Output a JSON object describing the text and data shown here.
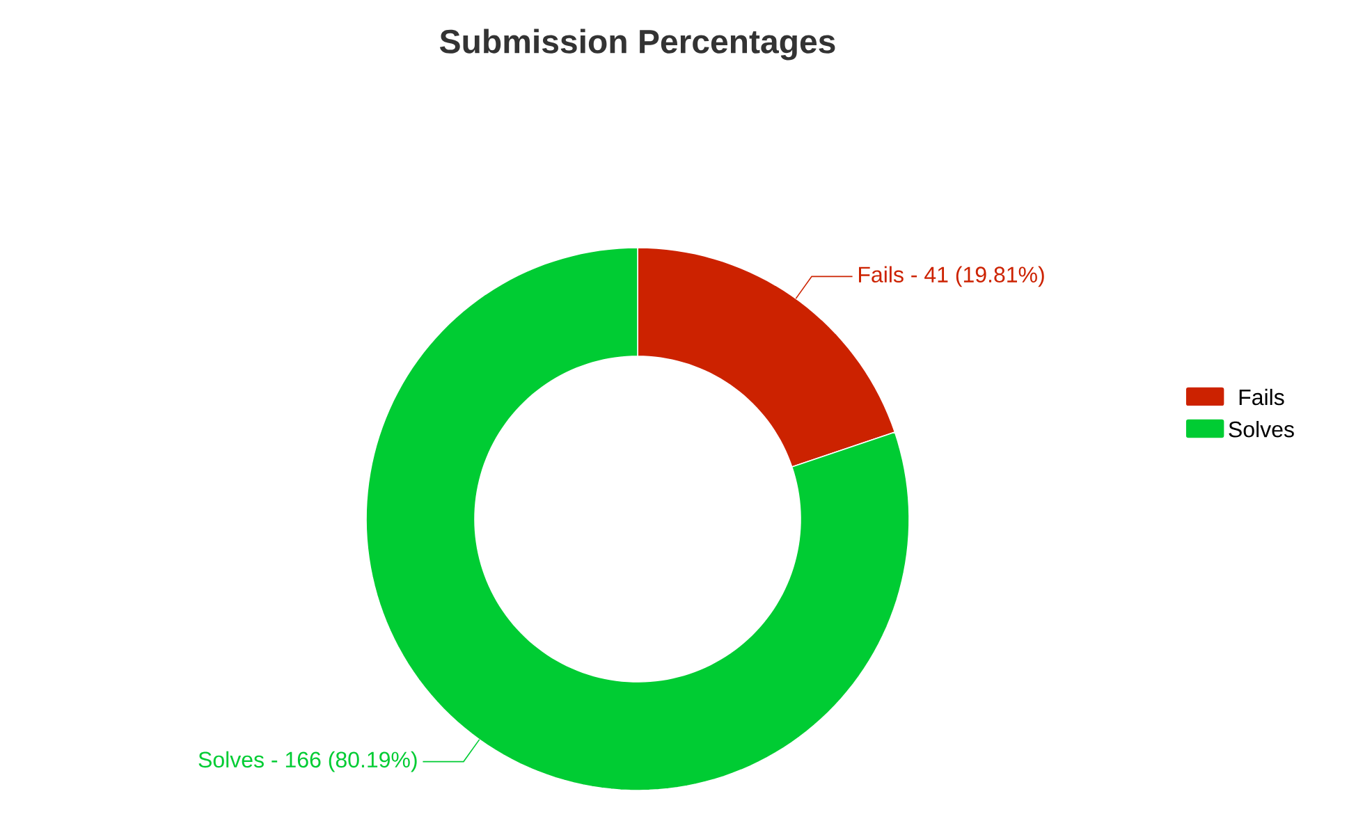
{
  "chart_data": {
    "type": "donut",
    "title": "Submission Percentages",
    "categories": [
      "Fails",
      "Solves"
    ],
    "values": [
      19.81,
      80.19
    ],
    "colors": [
      "#cc2200",
      "#00cc33"
    ],
    "annotations": [
      "Fails - 41 (19.81%)",
      "Solves - 166 (80.19%)"
    ],
    "legend": "right"
  }
}
